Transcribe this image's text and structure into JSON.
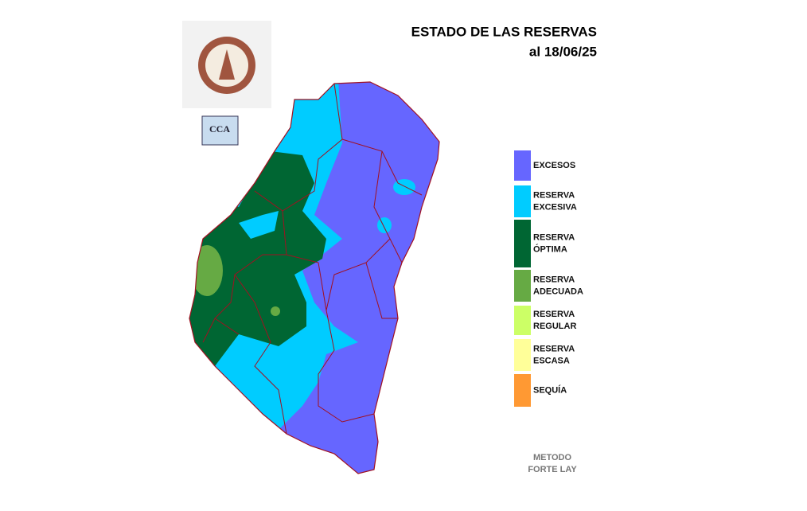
{
  "header": {
    "title": "ESTADO DE LAS RESERVAS",
    "date": "al 18/06/25"
  },
  "logo": {
    "cca": "CCA"
  },
  "legend": [
    {
      "lines": [
        "EXCESOS"
      ],
      "color": "#6666ff"
    },
    {
      "lines": [
        "RESERVA",
        "EXCESIVA"
      ],
      "color": "#00ccff"
    },
    {
      "lines": [
        "RESERVA",
        "ÓPTIMA"
      ],
      "color": "#006633"
    },
    {
      "lines": [
        "RESERVA",
        "ADECUADA"
      ],
      "color": "#66aa44"
    },
    {
      "lines": [
        "RESERVA",
        "REGULAR"
      ],
      "color": "#ccff66"
    },
    {
      "lines": [
        "RESERVA",
        "ESCASA"
      ],
      "color": "#ffff99"
    },
    {
      "lines": [
        "SEQUÍA"
      ],
      "color": "#ff9933"
    }
  ],
  "method": [
    "METODO",
    "FORTE LAY"
  ]
}
